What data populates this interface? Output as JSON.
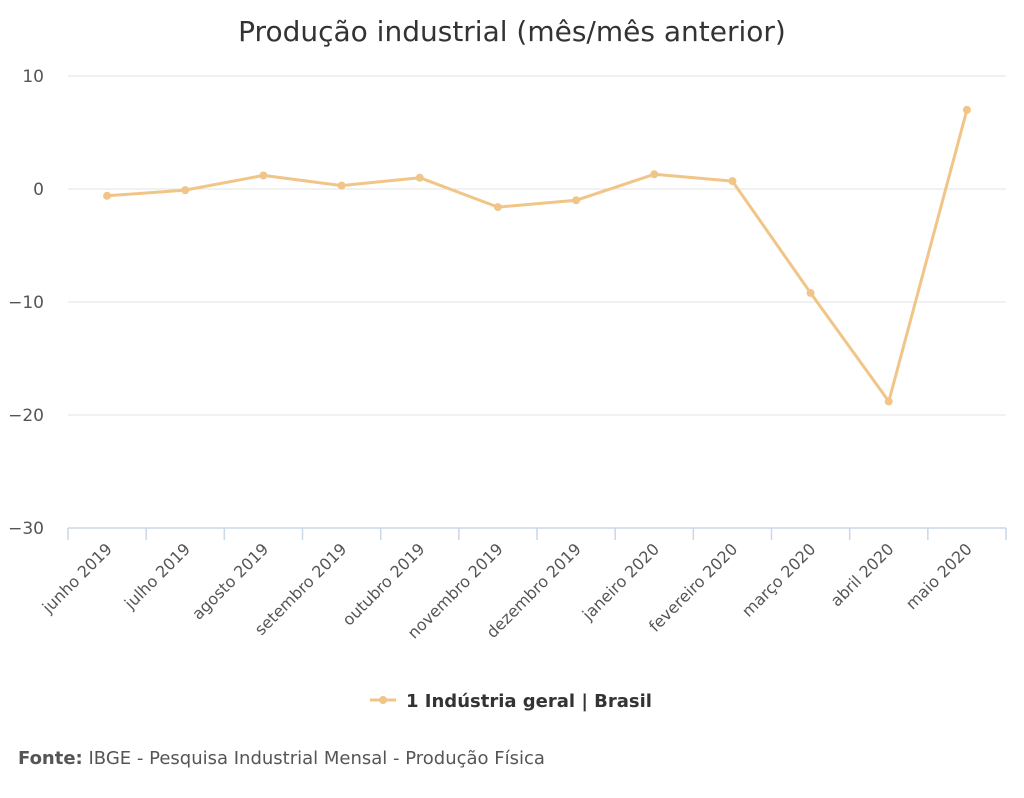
{
  "chart_data": {
    "type": "line",
    "title": "Produção industrial (mês/mês anterior)",
    "categories": [
      "junho 2019",
      "julho 2019",
      "agosto 2019",
      "setembro 2019",
      "outubro 2019",
      "novembro 2019",
      "dezembro 2019",
      "janeiro 2020",
      "fevereiro 2020",
      "março 2020",
      "abril 2020",
      "maio 2020"
    ],
    "series": [
      {
        "name": "1 Indústria geral | Brasil",
        "color": "#f1c587",
        "values": [
          -0.6,
          -0.1,
          1.2,
          0.3,
          1.0,
          -1.6,
          -1.0,
          1.3,
          0.7,
          -9.2,
          -18.8,
          7.0
        ]
      }
    ],
    "ylim": [
      -30,
      10
    ],
    "yticks": [
      "10",
      "0",
      "−10",
      "−20",
      "−30"
    ],
    "ytick_values": [
      10,
      0,
      -10,
      -20,
      -30
    ],
    "grid": true,
    "legend": "bottom-center"
  },
  "source": {
    "label": "Fonte:",
    "text": "IBGE - Pesquisa Industrial Mensal - Produção Física"
  }
}
